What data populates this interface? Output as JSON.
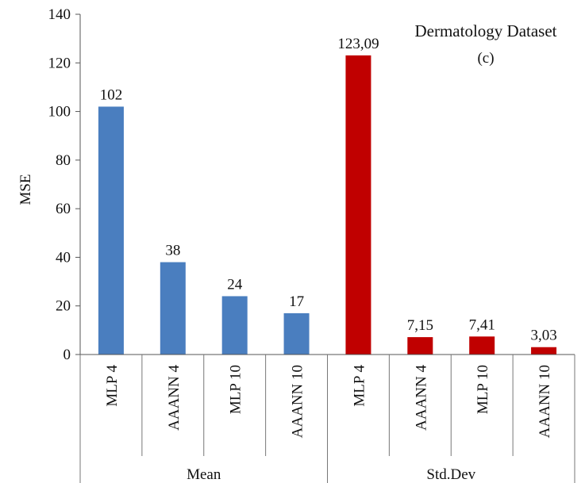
{
  "chart_data": {
    "type": "bar",
    "title": "Dermatology  Dataset",
    "subtitle": "(c)",
    "ylabel": "MSE",
    "xlabel": "",
    "ylim": [
      0,
      140
    ],
    "yticks": [
      0,
      20,
      40,
      60,
      80,
      100,
      120,
      140
    ],
    "grid": false,
    "groups": [
      {
        "name": "Mean",
        "color": "#4a7ebf",
        "bars": [
          {
            "category": "MLP 4",
            "value": 102,
            "label": "102"
          },
          {
            "category": "AAANN 4",
            "value": 38,
            "label": "38"
          },
          {
            "category": "MLP 10",
            "value": 24,
            "label": "24"
          },
          {
            "category": "AAANN 10",
            "value": 17,
            "label": "17"
          }
        ]
      },
      {
        "name": "Std.Dev",
        "color": "#c00000",
        "bars": [
          {
            "category": "MLP 4",
            "value": 123.09,
            "label": "123,09"
          },
          {
            "category": "AAANN 4",
            "value": 7.15,
            "label": "7,15"
          },
          {
            "category": "MLP 10",
            "value": 7.41,
            "label": "7,41"
          },
          {
            "category": "AAANN 10",
            "value": 3.03,
            "label": "3,03"
          }
        ]
      }
    ]
  }
}
